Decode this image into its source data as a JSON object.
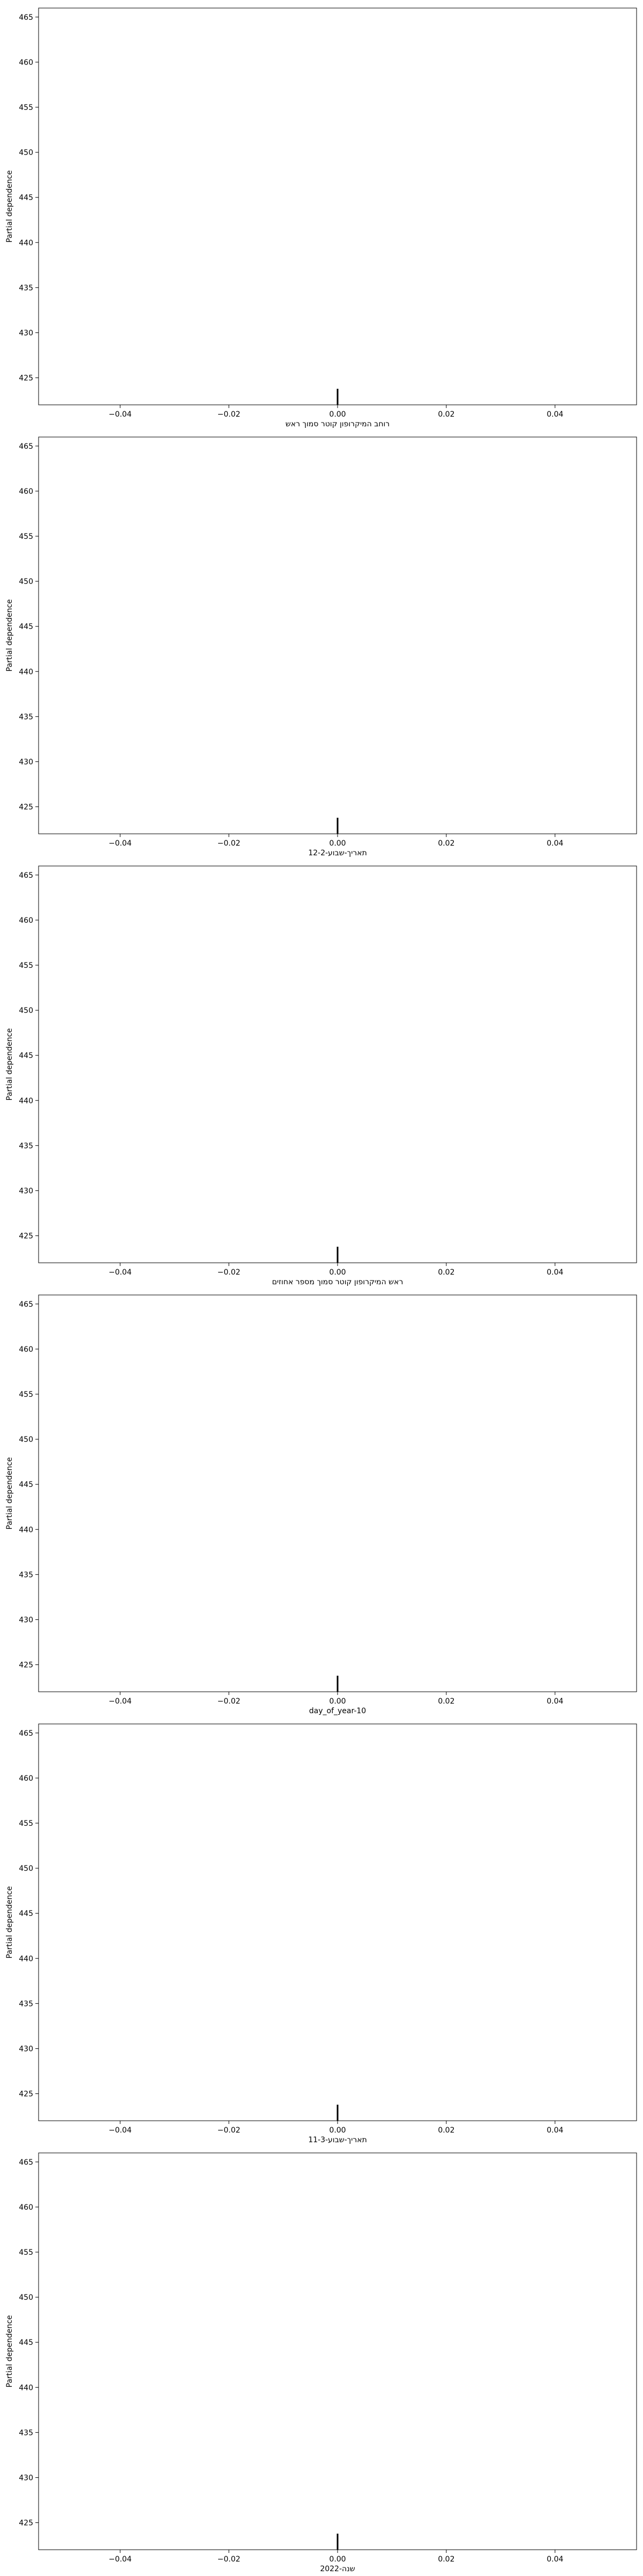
{
  "chart_data": [
    {
      "type": "line",
      "xlabel": "רוחב המיקרופון קוטר סמוך ראש",
      "ylabel": "Partial dependence",
      "xlim": [
        -0.055,
        0.055
      ],
      "ylim": [
        422,
        466
      ],
      "x_ticks": [
        -0.04,
        -0.02,
        0.0,
        0.02,
        0.04
      ],
      "x_tick_labels": [
        "−0.04",
        "−0.02",
        "0.00",
        "0.02",
        "0.04"
      ],
      "y_ticks": [
        425,
        430,
        435,
        440,
        445,
        450,
        455,
        460,
        465
      ],
      "y_tick_labels": [
        "425",
        "430",
        "435",
        "440",
        "445",
        "450",
        "455",
        "460",
        "465"
      ],
      "deciles": [
        0.0
      ]
    },
    {
      "type": "line",
      "xlabel": "תאריך-שבוע-12-2",
      "ylabel": "Partial dependence",
      "xlim": [
        -0.055,
        0.055
      ],
      "ylim": [
        422,
        466
      ],
      "x_ticks": [
        -0.04,
        -0.02,
        0.0,
        0.02,
        0.04
      ],
      "x_tick_labels": [
        "−0.04",
        "−0.02",
        "0.00",
        "0.02",
        "0.04"
      ],
      "y_ticks": [
        425,
        430,
        435,
        440,
        445,
        450,
        455,
        460,
        465
      ],
      "y_tick_labels": [
        "425",
        "430",
        "435",
        "440",
        "445",
        "450",
        "455",
        "460",
        "465"
      ],
      "deciles": [
        0.0
      ]
    },
    {
      "type": "line",
      "xlabel": "ראש המיקרופון קוטר סמוך מספר אחוזים",
      "ylabel": "Partial dependence",
      "xlim": [
        -0.055,
        0.055
      ],
      "ylim": [
        422,
        466
      ],
      "x_ticks": [
        -0.04,
        -0.02,
        0.0,
        0.02,
        0.04
      ],
      "x_tick_labels": [
        "−0.04",
        "−0.02",
        "0.00",
        "0.02",
        "0.04"
      ],
      "y_ticks": [
        425,
        430,
        435,
        440,
        445,
        450,
        455,
        460,
        465
      ],
      "y_tick_labels": [
        "425",
        "430",
        "435",
        "440",
        "445",
        "450",
        "455",
        "460",
        "465"
      ],
      "deciles": [
        0.0
      ]
    },
    {
      "type": "line",
      "xlabel": "day_of_year-10",
      "ylabel": "Partial dependence",
      "xlim": [
        -0.055,
        0.055
      ],
      "ylim": [
        422,
        466
      ],
      "x_ticks": [
        -0.04,
        -0.02,
        0.0,
        0.02,
        0.04
      ],
      "x_tick_labels": [
        "−0.04",
        "−0.02",
        "0.00",
        "0.02",
        "0.04"
      ],
      "y_ticks": [
        425,
        430,
        435,
        440,
        445,
        450,
        455,
        460,
        465
      ],
      "y_tick_labels": [
        "425",
        "430",
        "435",
        "440",
        "445",
        "450",
        "455",
        "460",
        "465"
      ],
      "deciles": [
        0.0
      ]
    },
    {
      "type": "line",
      "xlabel": "תאריך-שבוע-11-3",
      "ylabel": "Partial dependence",
      "xlim": [
        -0.055,
        0.055
      ],
      "ylim": [
        422,
        466
      ],
      "x_ticks": [
        -0.04,
        -0.02,
        0.0,
        0.02,
        0.04
      ],
      "x_tick_labels": [
        "−0.04",
        "−0.02",
        "0.00",
        "0.02",
        "0.04"
      ],
      "y_ticks": [
        425,
        430,
        435,
        440,
        445,
        450,
        455,
        460,
        465
      ],
      "y_tick_labels": [
        "425",
        "430",
        "435",
        "440",
        "445",
        "450",
        "455",
        "460",
        "465"
      ],
      "deciles": [
        0.0
      ]
    },
    {
      "type": "line",
      "xlabel": "שנה-2022",
      "ylabel": "Partial dependence",
      "xlim": [
        -0.055,
        0.055
      ],
      "ylim": [
        422,
        466
      ],
      "x_ticks": [
        -0.04,
        -0.02,
        0.0,
        0.02,
        0.04
      ],
      "x_tick_labels": [
        "−0.04",
        "−0.02",
        "0.00",
        "0.02",
        "0.04"
      ],
      "y_ticks": [
        425,
        430,
        435,
        440,
        445,
        450,
        455,
        460,
        465
      ],
      "y_tick_labels": [
        "425",
        "430",
        "435",
        "440",
        "445",
        "450",
        "455",
        "460",
        "465"
      ],
      "deciles": [
        0.0
      ]
    }
  ]
}
